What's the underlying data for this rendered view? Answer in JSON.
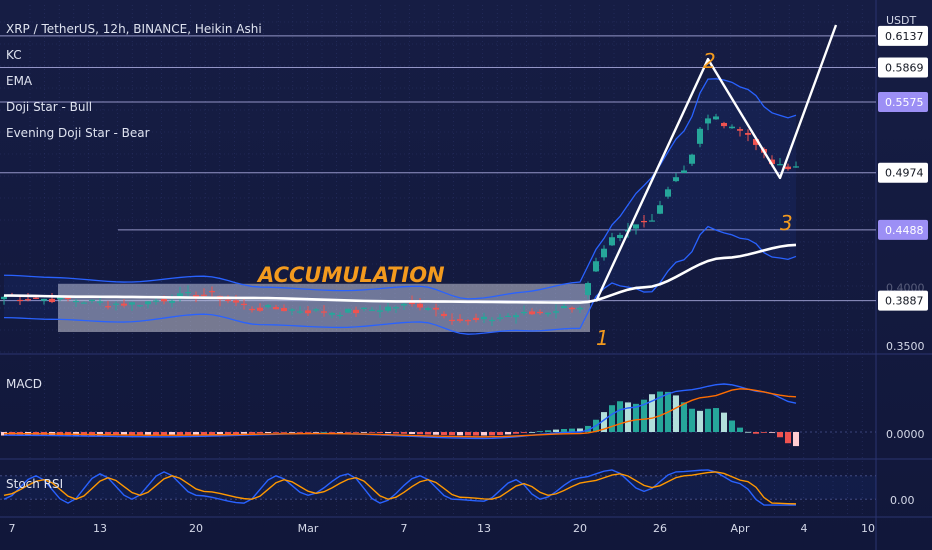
{
  "header": {
    "symbol_line": "XRP / TetherUS, 12h, BINANCE, Heikin Ashi",
    "indicators": [
      "KC",
      "EMA",
      "Doji Star - Bull",
      "Evening Doji Star - Bear"
    ],
    "currency": "USDT"
  },
  "panes": {
    "macd_label": "MACD",
    "stoch_label": "Stoch RSI",
    "macd_zero_label": "0.0000",
    "stoch_zero_label": "0.00"
  },
  "annotations": {
    "accumulation": "ACCUMULATION",
    "wave_1": "1",
    "wave_2": "2",
    "wave_3": "3"
  },
  "colors": {
    "background": "#131a3a",
    "bull_candle": "#26a69a",
    "bear_candle": "#ef5350",
    "keltner_band": "#2962ff",
    "ema": "#ffffff",
    "annotation": "#f39a1e",
    "macd_line": "#2962ff",
    "signal_line": "#ff6d00",
    "stoch_k": "#2962ff",
    "stoch_d": "#ff9800",
    "level_line": "#b4b4e8",
    "highlight_label": "#9c8ff5"
  },
  "chart_data": {
    "type": "candlestick",
    "title": "XRP / TetherUS, 12h, BINANCE, Heikin Ashi",
    "x_tick_labels": [
      "7",
      "13",
      "20",
      "Mar",
      "7",
      "13",
      "20",
      "26",
      "Apr",
      "4",
      "10"
    ],
    "y_tick_labels": [
      "0.4000",
      "0.3500"
    ],
    "y_range": [
      0.345,
      0.64
    ],
    "price_levels": [
      {
        "value": 0.6137,
        "label": "0.6137",
        "highlight": false
      },
      {
        "value": 0.5869,
        "label": "0.5869",
        "highlight": false
      },
      {
        "value": 0.5575,
        "label": "0.5575",
        "highlight": true
      },
      {
        "value": 0.4974,
        "label": "0.4974",
        "highlight": false
      },
      {
        "value": 0.4488,
        "label": "0.4488",
        "highlight": true
      },
      {
        "value": 0.3887,
        "label": "0.3887",
        "highlight": false
      }
    ],
    "accumulation_box": {
      "x_start_index": 7,
      "x_end_index": 73,
      "price_top": 0.403,
      "price_bottom": 0.362
    },
    "wave_path": [
      {
        "label": "1",
        "index": 74,
        "price": 0.388
      },
      {
        "label": "2",
        "index": 88,
        "price": 0.594
      },
      {
        "label": "3",
        "index": 97,
        "price": 0.493
      },
      {
        "label": "",
        "index": 104,
        "price": 0.623
      }
    ],
    "candles": {
      "count": 100,
      "base_price": 0.392,
      "pivots": [
        [
          0,
          0.392
        ],
        [
          6,
          0.39
        ],
        [
          15,
          0.386
        ],
        [
          25,
          0.394
        ],
        [
          32,
          0.382
        ],
        [
          42,
          0.379
        ],
        [
          52,
          0.385
        ],
        [
          58,
          0.371
        ],
        [
          65,
          0.377
        ],
        [
          72,
          0.384
        ],
        [
          74,
          0.42
        ],
        [
          76,
          0.44
        ],
        [
          80,
          0.455
        ],
        [
          85,
          0.5
        ],
        [
          88,
          0.545
        ],
        [
          90,
          0.54
        ],
        [
          93,
          0.53
        ],
        [
          96,
          0.505
        ],
        [
          98,
          0.5
        ],
        [
          99,
          0.503
        ]
      ]
    },
    "ema_pivots": [
      [
        0,
        0.393
      ],
      [
        10,
        0.392
      ],
      [
        30,
        0.391
      ],
      [
        50,
        0.388
      ],
      [
        72,
        0.387
      ],
      [
        80,
        0.4
      ],
      [
        90,
        0.425
      ],
      [
        99,
        0.436
      ]
    ],
    "keltner_width_pivots": [
      [
        0,
        0.018
      ],
      [
        30,
        0.016
      ],
      [
        60,
        0.015
      ],
      [
        74,
        0.02
      ],
      [
        82,
        0.05
      ],
      [
        90,
        0.065
      ],
      [
        99,
        0.06
      ]
    ],
    "macd": {
      "zero": 0,
      "line_pivots": [
        [
          0,
          -0.002
        ],
        [
          20,
          -0.003
        ],
        [
          40,
          -0.001
        ],
        [
          60,
          -0.004
        ],
        [
          72,
          0.0
        ],
        [
          78,
          0.015
        ],
        [
          85,
          0.026
        ],
        [
          90,
          0.03
        ],
        [
          95,
          0.025
        ],
        [
          99,
          0.018
        ]
      ],
      "signal_pivots": [
        [
          0,
          -0.001
        ],
        [
          20,
          -0.002
        ],
        [
          40,
          -0.001
        ],
        [
          60,
          -0.003
        ],
        [
          72,
          -0.001
        ],
        [
          80,
          0.008
        ],
        [
          88,
          0.022
        ],
        [
          92,
          0.027
        ],
        [
          99,
          0.022
        ]
      ]
    },
    "stoch": {
      "k_pivots": [
        [
          0,
          20
        ],
        [
          4,
          80
        ],
        [
          8,
          10
        ],
        [
          12,
          85
        ],
        [
          16,
          20
        ],
        [
          20,
          90
        ],
        [
          24,
          30
        ],
        [
          30,
          10
        ],
        [
          34,
          80
        ],
        [
          38,
          30
        ],
        [
          43,
          85
        ],
        [
          47,
          10
        ],
        [
          52,
          80
        ],
        [
          56,
          20
        ],
        [
          60,
          15
        ],
        [
          64,
          70
        ],
        [
          67,
          20
        ],
        [
          72,
          75
        ],
        [
          76,
          95
        ],
        [
          80,
          40
        ],
        [
          84,
          90
        ],
        [
          88,
          95
        ],
        [
          92,
          60
        ],
        [
          95,
          5
        ],
        [
          99,
          5
        ]
      ],
      "d_pivots": [
        [
          0,
          30
        ],
        [
          5,
          70
        ],
        [
          9,
          20
        ],
        [
          13,
          75
        ],
        [
          17,
          30
        ],
        [
          21,
          80
        ],
        [
          25,
          40
        ],
        [
          31,
          20
        ],
        [
          35,
          70
        ],
        [
          39,
          35
        ],
        [
          44,
          75
        ],
        [
          48,
          20
        ],
        [
          53,
          70
        ],
        [
          57,
          25
        ],
        [
          61,
          20
        ],
        [
          65,
          60
        ],
        [
          68,
          30
        ],
        [
          73,
          65
        ],
        [
          77,
          85
        ],
        [
          81,
          50
        ],
        [
          85,
          80
        ],
        [
          89,
          90
        ],
        [
          93,
          65
        ],
        [
          96,
          10
        ],
        [
          99,
          8
        ]
      ]
    }
  }
}
